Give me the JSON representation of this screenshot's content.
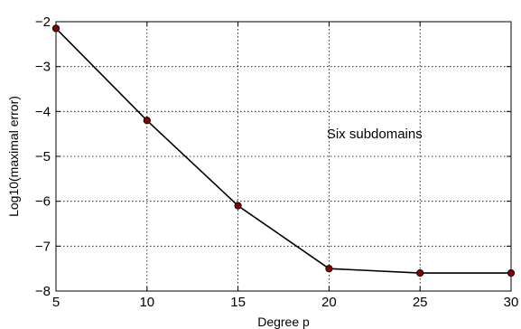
{
  "chart_data": {
    "type": "line",
    "title": "",
    "xlabel": "Degree p",
    "ylabel": "Log10(maximal error)",
    "xlim": [
      5,
      30
    ],
    "ylim": [
      -8,
      -2
    ],
    "xticks": [
      5,
      10,
      15,
      20,
      25,
      30
    ],
    "yticks": [
      -8,
      -7,
      -6,
      -5,
      -4,
      -3,
      -2
    ],
    "grid": true,
    "grid_style": "dotted",
    "annotation": {
      "text": "Six subdomains",
      "x": 22.5,
      "y": -4.6
    },
    "series": [
      {
        "x": [
          5,
          10,
          15,
          20,
          25,
          30
        ],
        "y": [
          -2.15,
          -4.2,
          -6.1,
          -7.5,
          -7.6,
          -7.6
        ],
        "line_color": "#000000",
        "marker_color": "#8b0000"
      }
    ]
  }
}
